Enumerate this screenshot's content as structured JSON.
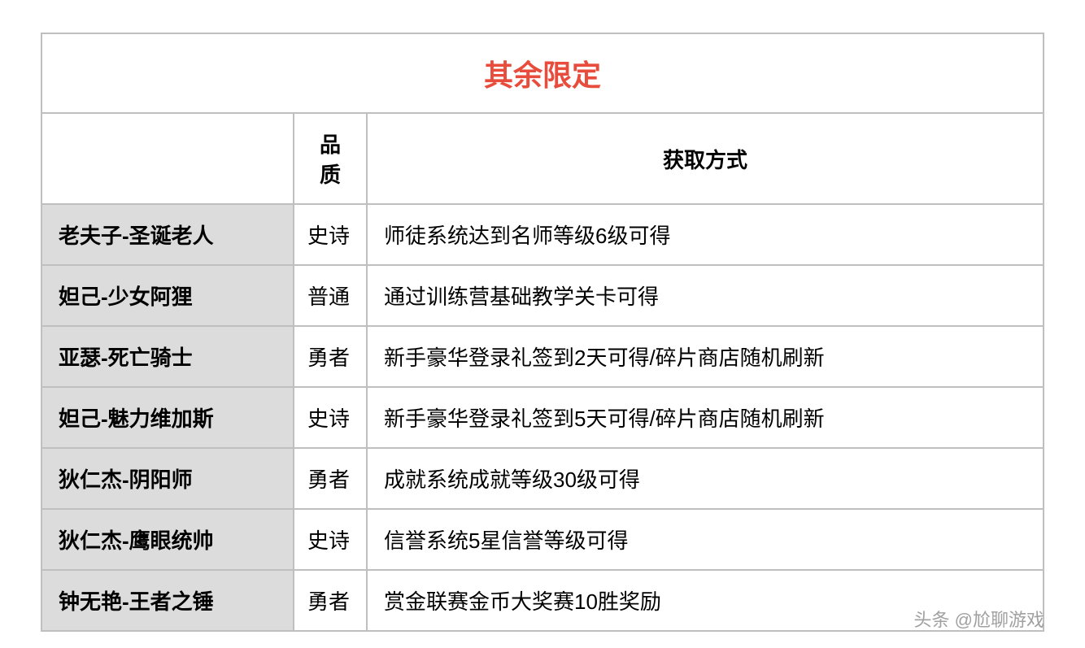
{
  "title": "其余限定",
  "columns": {
    "name": "",
    "quality": "品质",
    "method": "获取方式"
  },
  "rows": [
    {
      "name": "老夫子-圣诞老人",
      "quality": "史诗",
      "method": "师徒系统达到名师等级6级可得"
    },
    {
      "name": "妲己-少女阿狸",
      "quality": "普通",
      "method": "通过训练营基础教学关卡可得"
    },
    {
      "name": "亚瑟-死亡骑士",
      "quality": "勇者",
      "method": "新手豪华登录礼签到2天可得/碎片商店随机刷新"
    },
    {
      "name": "妲己-魅力维加斯",
      "quality": "史诗",
      "method": "新手豪华登录礼签到5天可得/碎片商店随机刷新"
    },
    {
      "name": "狄仁杰-阴阳师",
      "quality": "勇者",
      "method": "成就系统成就等级30级可得"
    },
    {
      "name": "狄仁杰-鹰眼统帅",
      "quality": "史诗",
      "method": "信誉系统5星信誉等级可得"
    },
    {
      "name": "钟无艳-王者之锤",
      "quality": "勇者",
      "method": "赏金联赛金币大奖赛10胜奖励"
    }
  ],
  "watermark": "头条 @尬聊游戏",
  "styling": {
    "title_color": "#e74c3c",
    "title_fontsize": 36,
    "header_fontsize": 26,
    "cell_fontsize": 26,
    "border_color": "#bfbfbf",
    "name_bg_color": "#dcdcdc",
    "cell_bg_color": "#ffffff",
    "text_color": "#000000",
    "watermark_color": "#a0a0a0",
    "col_widths": {
      "name": 310,
      "quality": 90
    }
  }
}
